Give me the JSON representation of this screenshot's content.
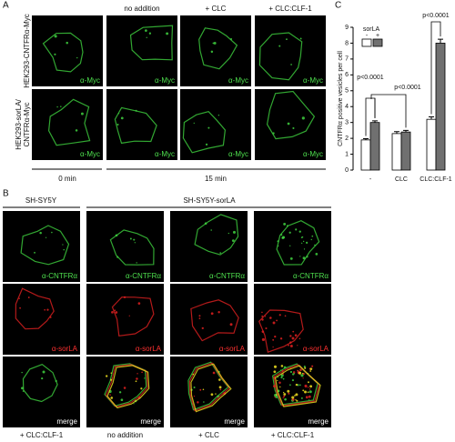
{
  "panel_a": {
    "label": "A",
    "column_headers": [
      "no addition",
      "+ CLC",
      "+ CLC:CLF-1"
    ],
    "row_labels": [
      [
        "HEK293-CNTFRα-Myc"
      ],
      [
        "HEK293-sorLA/",
        "CNTFRα-Myc"
      ]
    ],
    "image_labels": [
      [
        "α-Myc",
        "α-Myc",
        "α-Myc",
        "α-Myc"
      ],
      [
        "α-Myc",
        "α-Myc",
        "α-Myc",
        "α-Myc"
      ]
    ],
    "time_labels": [
      "0 min",
      "15 min"
    ]
  },
  "panel_b": {
    "label": "B",
    "headers": [
      "SH-SY5Y",
      "SH-SY5Y-sorLA"
    ],
    "image_labels": [
      [
        "α-CNTFRα",
        "α-CNTFRα",
        "α-CNTFRα",
        "α-CNTFRα"
      ],
      [
        "α-sorLA",
        "α-sorLA",
        "α-sorLA",
        "α-sorLA"
      ],
      [
        "merge",
        "merge",
        "merge",
        "merge"
      ]
    ],
    "column_labels": [
      "+ CLC:CLF-1",
      "no addition",
      "+ CLC",
      "+ CLC:CLF-1"
    ]
  },
  "panel_c": {
    "label": "C"
  },
  "chart_data": {
    "type": "bar",
    "y_label": "CNTFRα positive vesicles per cell",
    "categories": [
      "-",
      "CLC",
      "CLC:CLF-1"
    ],
    "legend_title": "sorLA",
    "series": [
      {
        "name": "-",
        "color": "#ffffff",
        "values": [
          1.9,
          2.3,
          3.2
        ],
        "errors": [
          0.08,
          0.12,
          0.15
        ]
      },
      {
        "name": "+",
        "color": "#707070",
        "values": [
          3.0,
          2.4,
          8.0
        ],
        "errors": [
          0.1,
          0.1,
          0.25
        ]
      }
    ],
    "ylim": [
      0,
      9
    ],
    "yticks": [
      0,
      1,
      2,
      3,
      4,
      5,
      6,
      7,
      8,
      9
    ],
    "annotations": [
      "p<0.0001",
      "p<0.0001",
      "p<0.0001"
    ]
  }
}
